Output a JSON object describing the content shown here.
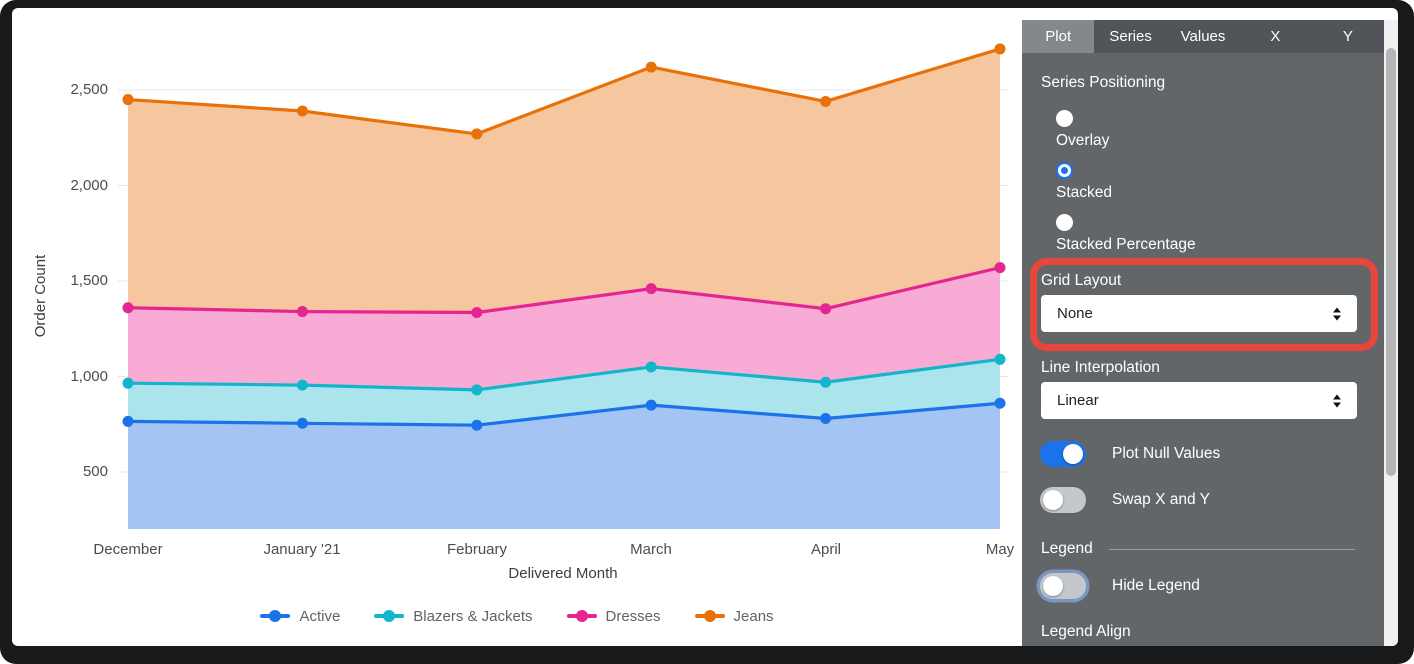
{
  "chart_data": {
    "type": "area",
    "positioning": "stacked",
    "note": "series values are the cumulative stacked line positions as rendered on the y axis",
    "title": "",
    "xlabel": "Delivered Month",
    "ylabel": "Order Count",
    "categories": [
      "December",
      "January '21",
      "February",
      "March",
      "April",
      "May"
    ],
    "series": [
      {
        "name": "Active",
        "color": "#1a73e8",
        "fill": "#a4c5f4",
        "values": [
          765,
          755,
          745,
          850,
          780,
          860
        ]
      },
      {
        "name": "Blazers & Jackets",
        "color": "#12b5cb",
        "fill": "#ace4ed",
        "values": [
          965,
          955,
          930,
          1050,
          970,
          1090
        ]
      },
      {
        "name": "Dresses",
        "color": "#e52592",
        "fill": "#f8abd4",
        "values": [
          1360,
          1340,
          1335,
          1460,
          1355,
          1570
        ]
      },
      {
        "name": "Jeans",
        "color": "#e8710a",
        "fill": "#f6c79e",
        "values": [
          2450,
          2390,
          2270,
          2620,
          2440,
          2715
        ]
      }
    ],
    "yticks": [
      2500,
      2000,
      1500,
      1000,
      500
    ],
    "ytick_labels": [
      "2,500",
      "2,000",
      "1,500",
      "1,000",
      "500"
    ],
    "ylim_visible": [
      200,
      2800
    ],
    "grid": "horizontal",
    "legend_position": "bottom"
  },
  "panel": {
    "tabs": [
      {
        "label": "Plot",
        "active": true
      },
      {
        "label": "Series",
        "active": false
      },
      {
        "label": "Values",
        "active": false
      },
      {
        "label": "X",
        "active": false
      },
      {
        "label": "Y",
        "active": false
      }
    ],
    "series_positioning": {
      "label": "Series Positioning",
      "options": [
        {
          "label": "Overlay",
          "selected": false
        },
        {
          "label": "Stacked",
          "selected": true
        },
        {
          "label": "Stacked Percentage",
          "selected": false
        }
      ]
    },
    "grid_layout": {
      "label": "Grid Layout",
      "value": "None",
      "highlighted": true
    },
    "line_interpolation": {
      "label": "Line Interpolation",
      "value": "Linear"
    },
    "plot_null_values": {
      "label": "Plot Null Values",
      "on": true
    },
    "swap_x_y": {
      "label": "Swap X and Y",
      "on": false
    },
    "legend_section": {
      "title": "Legend"
    },
    "hide_legend": {
      "label": "Hide Legend",
      "on": false
    },
    "legend_align": {
      "label": "Legend Align"
    },
    "colors": {
      "highlight": "#e8463c",
      "toggle_on": "#1a73e8",
      "radio_selected": "#1a73e8"
    }
  }
}
